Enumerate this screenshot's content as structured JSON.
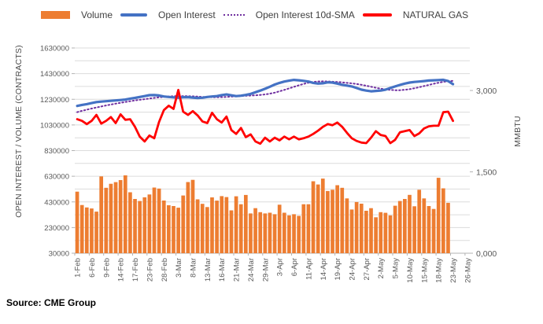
{
  "figure": {
    "source_note": "Source: CME Group"
  },
  "chart_data": {
    "type": "combo",
    "title": "",
    "slots": 82,
    "label_interval": 3,
    "grid": "horizontal",
    "legend_position": "top",
    "x_tick_labels": [
      "1-Feb",
      "6-Feb",
      "9-Feb",
      "14-Feb",
      "17-Feb",
      "23-Feb",
      "28-Feb",
      "3-Mar",
      "8-Mar",
      "13-Mar",
      "16-Mar",
      "21-Mar",
      "24-Mar",
      "29-Mar",
      "3-Apr",
      "6-Apr",
      "11-Apr",
      "14-Apr",
      "19-Apr",
      "24-Apr",
      "27-Apr",
      "2-May",
      "5-May",
      "10-May",
      "15-May",
      "18-May",
      "23-May",
      "26-May"
    ],
    "left_axis": {
      "title": "OPEN INTEREST / VOLUME (CONTRACTS)",
      "min": 30000,
      "max": 1630000,
      "major_step": 200000,
      "grid_step": 100000,
      "tick_labels": [
        "1630000",
        "1430000",
        "1230000",
        "1030000",
        "830000",
        "630000",
        "430000",
        "230000",
        "30000"
      ]
    },
    "right_axis": {
      "title": "MMBTU",
      "min": 0,
      "max": 3.784,
      "tick_labels": [
        "3,000",
        "1,500",
        "0,000"
      ],
      "tick_values": [
        3.0,
        1.5,
        0.0
      ]
    },
    "series": [
      {
        "name": "Volume",
        "type": "bar",
        "axis": "left",
        "color": "#ED7D31",
        "values": [
          510000,
          406000,
          387000,
          379000,
          354000,
          629000,
          540000,
          571000,
          584000,
          600000,
          637000,
          505000,
          453000,
          437000,
          466000,
          488000,
          542000,
          534000,
          441000,
          404000,
          398000,
          385000,
          480000,
          585000,
          602000,
          450000,
          415000,
          390000,
          465000,
          440000,
          475000,
          468000,
          364000,
          474000,
          412000,
          484000,
          340000,
          381000,
          350000,
          340000,
          346000,
          334000,
          408000,
          346000,
          325000,
          334000,
          321000,
          412000,
          412000,
          591000,
          566000,
          612000,
          515000,
          525000,
          560000,
          540000,
          457000,
          371000,
          429000,
          416000,
          361000,
          381000,
          310000,
          350000,
          345000,
          325000,
          400000,
          437000,
          453000,
          485000,
          396000,
          525000,
          457000,
          398000,
          375000,
          618000,
          536000,
          423000,
          null
        ]
      },
      {
        "name": "Open Interest",
        "type": "line",
        "axis": "left",
        "color": "#4472C4",
        "values": [
          1178000,
          1186000,
          1192000,
          1200000,
          1208000,
          1212000,
          1215000,
          1218000,
          1221000,
          1224000,
          1228000,
          1235000,
          1241000,
          1248000,
          1255000,
          1262000,
          1263000,
          1260000,
          1252000,
          1248000,
          1245000,
          1242000,
          1246000,
          1247000,
          1243000,
          1240000,
          1242000,
          1248000,
          1252000,
          1255000,
          1263000,
          1268000,
          1261000,
          1255000,
          1258000,
          1264000,
          1272000,
          1285000,
          1298000,
          1312000,
          1328000,
          1345000,
          1358000,
          1368000,
          1375000,
          1381000,
          1378000,
          1374000,
          1368000,
          1358000,
          1352000,
          1355000,
          1362000,
          1360000,
          1352000,
          1343000,
          1337000,
          1330000,
          1318000,
          1305000,
          1298000,
          1292000,
          1295000,
          1298000,
          1305000,
          1318000,
          1330000,
          1342000,
          1352000,
          1360000,
          1365000,
          1368000,
          1372000,
          1376000,
          1378000,
          1380000,
          1382000,
          1372000,
          1348000
        ]
      },
      {
        "name": "Open Interest 10d-SMA",
        "type": "line",
        "style": "dotted",
        "axis": "left",
        "color": "#7030A0",
        "values": [
          1130000,
          1140000,
          1149000,
          1158000,
          1166000,
          1174000,
          1182000,
          1189000,
          1196000,
          1203000,
          1209000,
          1215000,
          1221000,
          1226000,
          1231000,
          1236000,
          1241000,
          1245000,
          1249000,
          1252000,
          1254000,
          1255000,
          1255000,
          1254000,
          1253000,
          1251000,
          1249000,
          1247000,
          1246000,
          1246000,
          1247000,
          1249000,
          1251000,
          1253000,
          1255000,
          1257000,
          1259000,
          1261000,
          1264000,
          1268000,
          1274000,
          1282000,
          1292000,
          1303000,
          1315000,
          1327000,
          1339000,
          1350000,
          1359000,
          1365000,
          1369000,
          1370000,
          1369000,
          1367000,
          1365000,
          1362000,
          1358000,
          1354000,
          1349000,
          1343000,
          1336000,
          1328000,
          1320000,
          1313000,
          1307000,
          1303000,
          1301000,
          1301000,
          1304000,
          1309000,
          1316000,
          1324000,
          1333000,
          1342000,
          1351000,
          1359000,
          1366000,
          1371000,
          1374000
        ]
      },
      {
        "name": "NATURAL GAS",
        "type": "line",
        "axis": "right",
        "color": "#FF0000",
        "values": [
          2.47,
          2.44,
          2.38,
          2.44,
          2.55,
          2.39,
          2.44,
          2.51,
          2.4,
          2.56,
          2.46,
          2.47,
          2.33,
          2.15,
          2.06,
          2.17,
          2.12,
          2.42,
          2.64,
          2.72,
          2.66,
          3.01,
          2.61,
          2.55,
          2.62,
          2.54,
          2.43,
          2.4,
          2.59,
          2.47,
          2.41,
          2.52,
          2.27,
          2.2,
          2.31,
          2.14,
          2.19,
          2.06,
          2.02,
          2.13,
          2.06,
          2.13,
          2.08,
          2.15,
          2.1,
          2.15,
          2.1,
          2.12,
          2.15,
          2.2,
          2.26,
          2.33,
          2.38,
          2.36,
          2.41,
          2.33,
          2.22,
          2.12,
          2.07,
          2.04,
          2.03,
          2.13,
          2.25,
          2.18,
          2.16,
          2.03,
          2.09,
          2.23,
          2.25,
          2.27,
          2.16,
          2.21,
          2.3,
          2.34,
          2.35,
          2.35,
          2.6,
          2.61,
          2.44
        ]
      }
    ]
  }
}
